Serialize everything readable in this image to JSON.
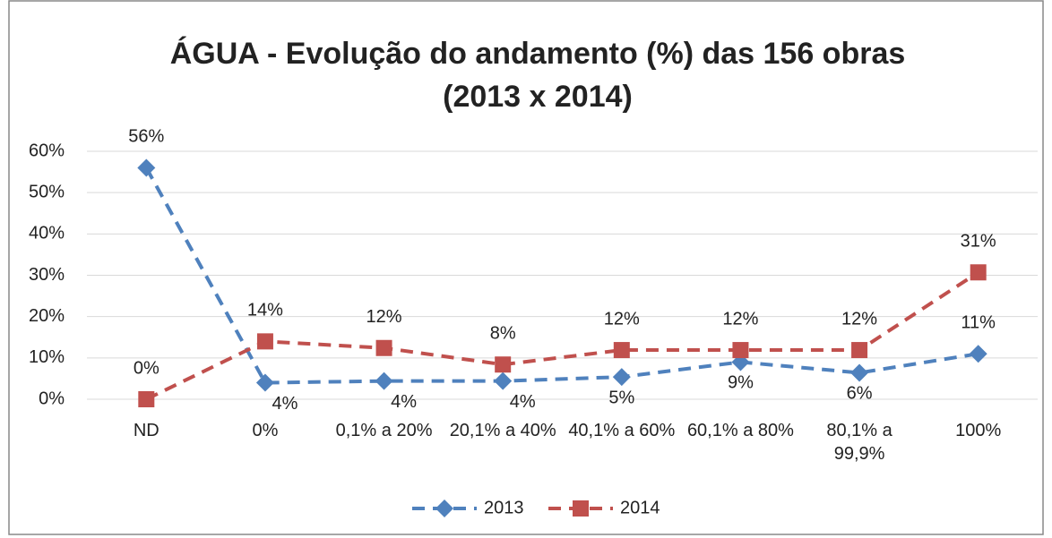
{
  "chart_data": {
    "type": "line",
    "title": [
      "ÁGUA - Evolução do andamento (%) das 156 obras",
      "(2013 x 2014)"
    ],
    "categories": [
      "ND",
      "0%",
      "0,1% a 20%",
      "20,1% a 40%",
      "40,1% a 60%",
      "60,1% a 80%",
      "80,1% a 99,9%",
      "100%"
    ],
    "series": [
      {
        "name": "2013",
        "color": "#4f81bd",
        "marker": "diamond",
        "values": [
          56,
          4,
          4.4,
          4.4,
          5.4,
          9,
          6.4,
          11
        ],
        "value_labels": [
          "56%",
          "4%",
          "4%",
          "4%",
          "5%",
          "9%",
          "6%",
          "11%"
        ]
      },
      {
        "name": "2014",
        "color": "#c0504d",
        "marker": "square",
        "values": [
          0,
          14,
          12.4,
          8.4,
          11.9,
          11.9,
          11.9,
          30.7
        ],
        "value_labels": [
          "0%",
          "14%",
          "12%",
          "8%",
          "12%",
          "12%",
          "12%",
          "31%"
        ]
      }
    ],
    "ylim": [
      0,
      60
    ],
    "yticks": [
      {
        "value": 0,
        "label": "0%"
      },
      {
        "value": 10,
        "label": "10%"
      },
      {
        "value": 20,
        "label": "20%"
      },
      {
        "value": 30,
        "label": "30%"
      },
      {
        "value": 40,
        "label": "40%"
      },
      {
        "value": 50,
        "label": "50%"
      },
      {
        "value": 60,
        "label": "60%"
      }
    ],
    "grid": true,
    "legend": "bottom"
  }
}
